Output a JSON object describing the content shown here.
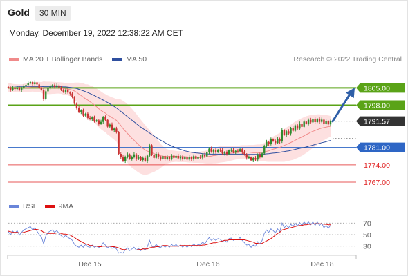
{
  "header": {
    "symbol": "Gold",
    "timeframe": "30 MIN",
    "timestamp": "Monday, December 19, 2022 12:38:22 AM CET"
  },
  "legend": {
    "ma20_label": "MA 20 + Bollinger Bands",
    "ma50_label": "MA 50",
    "ma20_color": "#f08a8a",
    "ma50_color": "#2f4f9f",
    "copyright": "Research © 2022 Trading Central"
  },
  "rsi_legend": {
    "rsi_label": "RSI",
    "ma9_label": "9MA",
    "rsi_color": "#6a85d9",
    "ma9_color": "#dd1111"
  },
  "chart_data": [
    {
      "type": "candlestick",
      "title": "Gold",
      "x_labels": [
        "Dec 15",
        "Dec 16",
        "Dec 18"
      ],
      "ylim": [
        1762.0,
        1814.0
      ],
      "last_price": 1791.57,
      "levels": [
        {
          "value": 1805.0,
          "label": "1805.00",
          "kind": "resistance",
          "color": "#5aa317"
        },
        {
          "value": 1798.0,
          "label": "1798.00",
          "kind": "resistance",
          "color": "#5aa317"
        },
        {
          "value": 1791.57,
          "label": "1791.57",
          "kind": "last",
          "color": "#333333"
        },
        {
          "value": 1781.0,
          "label": "1781.00",
          "kind": "pivot",
          "color": "#2e66c5"
        },
        {
          "value": 1774.0,
          "label": "1774.00",
          "kind": "support",
          "color": "#e02020"
        },
        {
          "value": 1767.0,
          "label": "1767.00",
          "kind": "support",
          "color": "#e02020"
        }
      ],
      "projection": {
        "from": 1791.5,
        "to": 1805.0,
        "color": "#2f5fa8"
      },
      "close": [
        1805.0,
        1804.2,
        1805.1,
        1804.5,
        1805.2,
        1804.0,
        1804.8,
        1805.6,
        1806.2,
        1806.8,
        1807.3,
        1806.5,
        1807.2,
        1806.4,
        1805.1,
        1804.2,
        1800.5,
        1803.6,
        1805.0,
        1805.6,
        1806.1,
        1805.4,
        1806.0,
        1805.2,
        1804.3,
        1803.3,
        1804.1,
        1803.1,
        1802.7,
        1801.4,
        1798.6,
        1797.0,
        1795.3,
        1795.9,
        1793.8,
        1794.6,
        1792.9,
        1792.4,
        1793.1,
        1791.6,
        1791.9,
        1790.6,
        1791.3,
        1793.2,
        1792.1,
        1789.4,
        1790.2,
        1788.1,
        1788.6,
        1787.2,
        1778.4,
        1777.0,
        1775.6,
        1777.2,
        1778.2,
        1776.4,
        1777.1,
        1778.2,
        1776.5,
        1777.2,
        1775.9,
        1776.8,
        1775.6,
        1777.7,
        1781.9,
        1777.9,
        1776.8,
        1778.4,
        1777.0,
        1776.3,
        1777.5,
        1776.3,
        1777.1,
        1776.4,
        1777.7,
        1776.8,
        1777.6,
        1776.6,
        1777.4,
        1776.3,
        1777.2,
        1776.1,
        1777.0,
        1776.3,
        1777.5,
        1776.5,
        1777.3,
        1776.9,
        1778.1,
        1777.4,
        1779.0,
        1780.5,
        1779.3,
        1779.9,
        1779.1,
        1780.0,
        1779.8,
        1778.6,
        1779.0,
        1778.3,
        1779.8,
        1780.0,
        1779.1,
        1779.6,
        1779.4,
        1780.3,
        1779.1,
        1778.2,
        1776.9,
        1777.0,
        1775.8,
        1776.7,
        1776.1,
        1778.1,
        1777.2,
        1778.6,
        1781.5,
        1783.2,
        1782.4,
        1784.3,
        1783.6,
        1782.8,
        1784.5,
        1783.4,
        1788.1,
        1786.0,
        1787.5,
        1786.6,
        1788.8,
        1787.7,
        1789.9,
        1788.6,
        1790.6,
        1789.3,
        1791.4,
        1790.6,
        1792.1,
        1791.1,
        1792.4,
        1791.2,
        1792.5,
        1791.3,
        1792.2,
        1790.6,
        1791.6,
        1790.3,
        1791.57
      ],
      "ma20": [
        1805.2,
        1805.0,
        1804.9,
        1804.9,
        1804.9,
        1804.9,
        1804.9,
        1805.0,
        1805.1,
        1805.2,
        1805.3,
        1805.4,
        1805.4,
        1805.4,
        1805.3,
        1805.2,
        1805.0,
        1805.0,
        1805.0,
        1805.0,
        1805.0,
        1805.0,
        1805.0,
        1805.0,
        1804.9,
        1804.7,
        1804.6,
        1804.5,
        1804.3,
        1804.1,
        1803.7,
        1803.2,
        1802.5,
        1801.9,
        1801.3,
        1800.6,
        1800.1,
        1799.4,
        1798.8,
        1798.1,
        1797.4,
        1796.6,
        1795.9,
        1795.3,
        1794.8,
        1794.1,
        1793.6,
        1793.0,
        1792.5,
        1791.9,
        1790.9,
        1789.8,
        1788.6,
        1787.6,
        1786.6,
        1785.7,
        1784.7,
        1783.9,
        1783.0,
        1782.1,
        1781.3,
        1780.6,
        1780.0,
        1779.5,
        1779.2,
        1778.9,
        1778.5,
        1778.2,
        1777.9,
        1777.6,
        1777.5,
        1777.4,
        1777.4,
        1777.4,
        1777.4,
        1777.4,
        1777.4,
        1777.3,
        1777.3,
        1777.3,
        1777.3,
        1777.2,
        1777.1,
        1777.1,
        1777.0,
        1777.0,
        1777.0,
        1777.0,
        1777.1,
        1777.1,
        1777.2,
        1777.4,
        1777.5,
        1777.7,
        1777.8,
        1778.0,
        1778.2,
        1778.3,
        1778.4,
        1778.5,
        1778.6,
        1778.7,
        1778.8,
        1778.9,
        1779.0,
        1779.1,
        1779.2,
        1779.2,
        1779.1,
        1779.1,
        1779.0,
        1778.9,
        1778.9,
        1778.9,
        1778.9,
        1779.0,
        1779.1,
        1779.4,
        1779.6,
        1780.0,
        1780.3,
        1780.5,
        1780.8,
        1781.0,
        1781.5,
        1781.8,
        1782.2,
        1782.6,
        1783.0,
        1783.4,
        1783.9,
        1784.3,
        1784.8,
        1785.2,
        1785.7,
        1786.2,
        1786.6,
        1787.1,
        1787.5,
        1787.8,
        1788.2,
        1788.5,
        1788.8,
        1789.0,
        1789.2,
        1789.4,
        1789.5
      ],
      "bb_width": [
        1.8,
        1.8,
        1.7,
        1.6,
        1.5,
        1.5,
        1.5,
        1.6,
        1.7,
        1.8,
        1.9,
        1.9,
        2.0,
        2.0,
        2.1,
        2.1,
        2.6,
        2.5,
        2.5,
        2.5,
        2.4,
        2.4,
        2.3,
        2.3,
        2.3,
        2.4,
        2.4,
        2.5,
        2.6,
        2.8,
        3.4,
        3.9,
        4.6,
        5.0,
        5.5,
        5.8,
        6.3,
        6.6,
        6.9,
        7.1,
        7.3,
        7.5,
        7.6,
        7.6,
        7.7,
        7.9,
        8.0,
        8.2,
        8.4,
        8.5,
        9.6,
        10.5,
        11.2,
        11.6,
        11.8,
        11.9,
        11.9,
        11.7,
        11.5,
        11.2,
        10.9,
        10.5,
        10.0,
        9.4,
        8.8,
        8.1,
        7.4,
        6.6,
        5.8,
        4.9,
        4.0,
        3.3,
        2.9,
        2.6,
        2.4,
        2.3,
        2.2,
        2.2,
        2.2,
        2.2,
        2.2,
        2.2,
        2.2,
        2.2,
        2.2,
        2.2,
        2.2,
        2.3,
        2.4,
        2.5,
        2.7,
        2.9,
        3.0,
        3.1,
        3.2,
        3.3,
        3.3,
        3.3,
        3.3,
        3.2,
        3.1,
        3.0,
        2.9,
        2.8,
        2.7,
        2.7,
        2.7,
        2.7,
        2.8,
        2.9,
        3.0,
        3.1,
        3.2,
        3.3,
        3.3,
        3.4,
        3.7,
        4.1,
        4.4,
        4.8,
        5.1,
        5.3,
        5.6,
        5.8,
        6.3,
        6.6,
        6.8,
        7.0,
        7.2,
        7.4,
        7.5,
        7.6,
        7.6,
        7.6,
        7.5,
        7.4,
        7.2,
        7.0,
        6.7,
        6.4,
        6.1,
        5.8,
        5.4,
        5.1,
        4.8,
        4.5,
        4.2
      ],
      "ma50": [
        1805.8,
        1805.8,
        1805.7,
        1805.7,
        1805.6,
        1805.6,
        1805.6,
        1805.6,
        1805.6,
        1805.6,
        1805.6,
        1805.6,
        1805.6,
        1805.6,
        1805.6,
        1805.6,
        1805.5,
        1805.5,
        1805.5,
        1805.5,
        1805.5,
        1805.5,
        1805.5,
        1805.5,
        1805.5,
        1805.4,
        1805.4,
        1805.3,
        1805.2,
        1805.1,
        1804.9,
        1804.7,
        1804.4,
        1804.1,
        1803.8,
        1803.5,
        1803.1,
        1802.7,
        1802.3,
        1801.9,
        1801.4,
        1801.0,
        1800.5,
        1800.1,
        1799.6,
        1799.1,
        1798.6,
        1798.0,
        1797.5,
        1796.9,
        1796.2,
        1795.5,
        1794.8,
        1794.1,
        1793.4,
        1792.7,
        1792.0,
        1791.3,
        1790.6,
        1789.9,
        1789.2,
        1788.6,
        1788.0,
        1787.4,
        1786.8,
        1786.2,
        1785.6,
        1785.0,
        1784.5,
        1783.9,
        1783.4,
        1782.9,
        1782.4,
        1782.0,
        1781.6,
        1781.2,
        1780.8,
        1780.5,
        1780.2,
        1779.9,
        1779.6,
        1779.4,
        1779.2,
        1779.0,
        1778.9,
        1778.8,
        1778.7,
        1778.6,
        1778.5,
        1778.4,
        1778.4,
        1778.3,
        1778.3,
        1778.3,
        1778.3,
        1778.3,
        1778.3,
        1778.3,
        1778.3,
        1778.3,
        1778.3,
        1778.3,
        1778.3,
        1778.3,
        1778.3,
        1778.3,
        1778.3,
        1778.3,
        1778.2,
        1778.2,
        1778.2,
        1778.2,
        1778.2,
        1778.2,
        1778.2,
        1778.3,
        1778.3,
        1778.4,
        1778.5,
        1778.6,
        1778.7,
        1778.8,
        1778.9,
        1779.0,
        1779.2,
        1779.3,
        1779.5,
        1779.6,
        1779.8,
        1780.0,
        1780.2,
        1780.4,
        1780.6,
        1780.8,
        1781.0,
        1781.2,
        1781.5,
        1781.7,
        1781.9,
        1782.2,
        1782.4,
        1782.6,
        1782.9,
        1783.1,
        1783.3,
        1783.6,
        1783.8
      ]
    },
    {
      "type": "line",
      "title": "RSI",
      "ylim": [
        20,
        80
      ],
      "y_ticks": [
        70,
        50,
        30
      ],
      "series": [
        {
          "name": "RSI",
          "values": [
            55,
            50,
            56,
            52,
            57,
            49,
            54,
            58,
            60,
            62,
            64,
            58,
            62,
            56,
            50,
            46,
            34,
            48,
            54,
            56,
            58,
            54,
            57,
            52,
            48,
            45,
            49,
            45,
            43,
            40,
            33,
            30,
            28,
            32,
            28,
            33,
            29,
            28,
            32,
            28,
            30,
            27,
            30,
            36,
            32,
            27,
            30,
            26,
            28,
            25,
            18,
            19,
            18,
            24,
            27,
            22,
            25,
            28,
            23,
            26,
            22,
            26,
            23,
            29,
            40,
            30,
            28,
            33,
            29,
            27,
            32,
            28,
            31,
            28,
            33,
            30,
            33,
            29,
            32,
            28,
            32,
            28,
            32,
            29,
            34,
            30,
            33,
            32,
            37,
            34,
            40,
            45,
            40,
            43,
            40,
            43,
            42,
            38,
            40,
            37,
            43,
            44,
            40,
            42,
            41,
            45,
            40,
            36,
            32,
            33,
            28,
            32,
            30,
            38,
            34,
            40,
            52,
            58,
            54,
            60,
            57,
            53,
            60,
            55,
            70,
            62,
            66,
            62,
            68,
            64,
            70,
            65,
            71,
            66,
            72,
            68,
            72,
            67,
            72,
            66,
            72,
            66,
            70,
            62,
            66,
            61,
            66
          ]
        },
        {
          "name": "9MA",
          "values": [
            56,
            55,
            54,
            54,
            54,
            53,
            53,
            54,
            55,
            56,
            57,
            58,
            59,
            59,
            58,
            57,
            54,
            53,
            52,
            52,
            52,
            52,
            53,
            53,
            52,
            51,
            51,
            50,
            49,
            47,
            45,
            42,
            40,
            38,
            36,
            34,
            33,
            31,
            31,
            30,
            30,
            29,
            29,
            30,
            30,
            30,
            30,
            29,
            29,
            28,
            27,
            25,
            24,
            24,
            23,
            23,
            23,
            23,
            23,
            24,
            24,
            25,
            25,
            25,
            27,
            28,
            28,
            29,
            29,
            30,
            31,
            31,
            31,
            30,
            30,
            30,
            30,
            30,
            31,
            31,
            31,
            31,
            31,
            31,
            31,
            31,
            31,
            31,
            32,
            32,
            33,
            34,
            35,
            36,
            36,
            37,
            38,
            39,
            40,
            40,
            41,
            41,
            41,
            41,
            41,
            41,
            41,
            41,
            40,
            39,
            38,
            37,
            35,
            35,
            34,
            35,
            37,
            39,
            41,
            43,
            46,
            49,
            52,
            54,
            58,
            59,
            60,
            61,
            62,
            63,
            64,
            65,
            66,
            66,
            67,
            67,
            68,
            68,
            69,
            69,
            69,
            69,
            69,
            68,
            68,
            67,
            67
          ]
        }
      ]
    }
  ]
}
